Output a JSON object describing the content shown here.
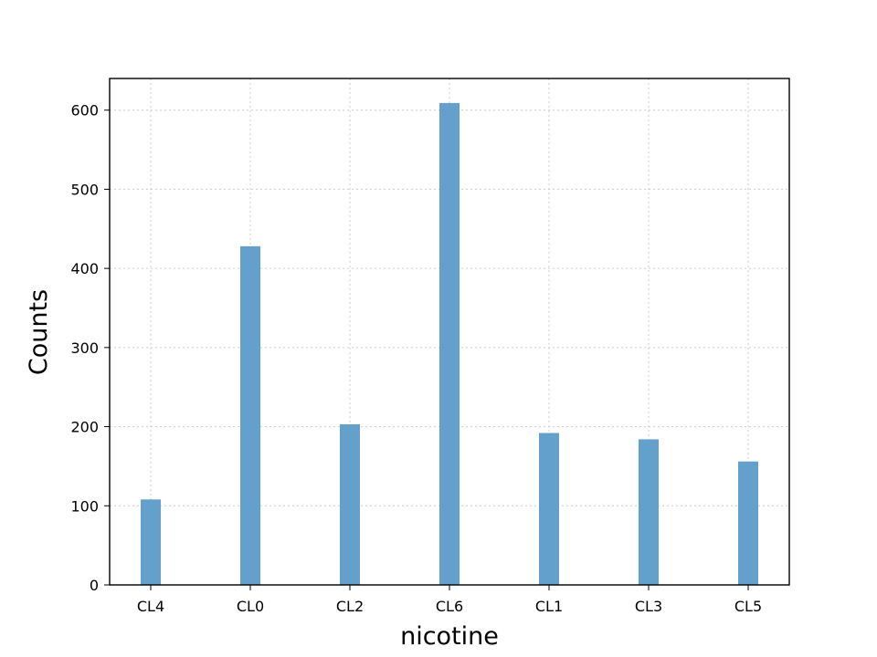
{
  "chart_data": {
    "type": "bar",
    "categories": [
      "CL4",
      "CL0",
      "CL2",
      "CL6",
      "CL1",
      "CL3",
      "CL5"
    ],
    "values": [
      108,
      428,
      203,
      609,
      192,
      184,
      156
    ],
    "title": "",
    "xlabel": "nicotine",
    "ylabel": "Counts",
    "ylim": [
      0,
      640
    ],
    "yticks": [
      0,
      100,
      200,
      300,
      400,
      500,
      600
    ],
    "grid": true,
    "bar_color": "#64a0cc"
  }
}
